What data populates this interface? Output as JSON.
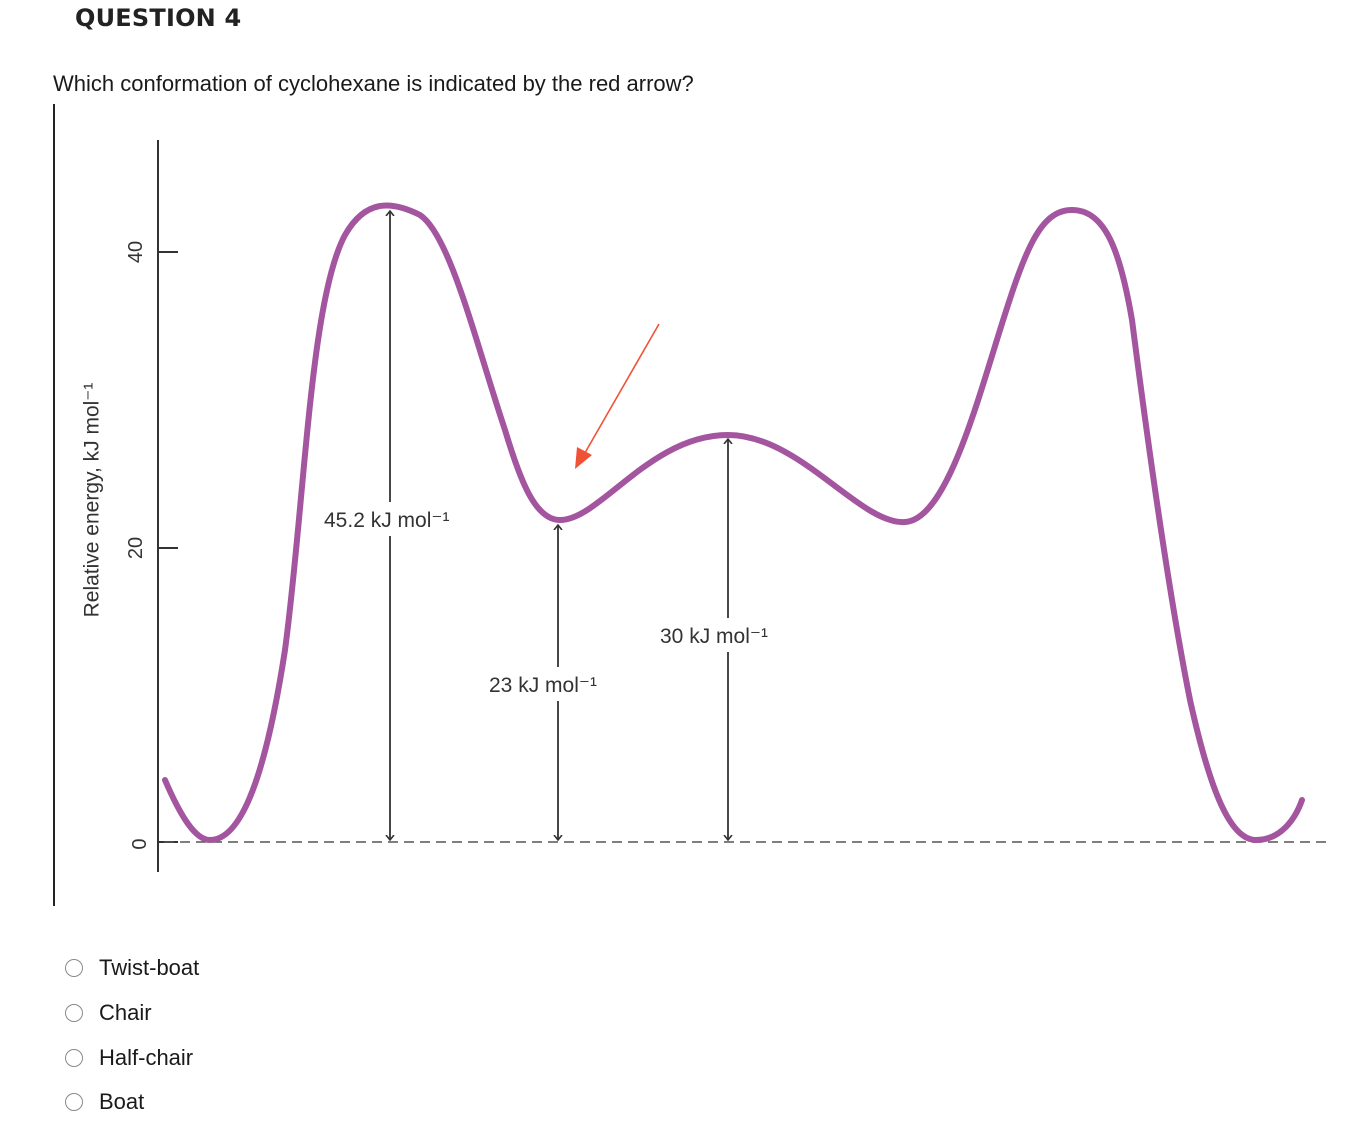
{
  "question": {
    "number": "QUESTION 4",
    "text": "Which conformation of cyclohexane is indicated by the red arrow?"
  },
  "figure": {
    "ylabel": "Relative energy, kJ mol⁻¹",
    "y_ticks": [
      "40",
      "20",
      "0"
    ],
    "annotations": {
      "half_chair_barrier": "45.2 kJ mol⁻¹",
      "twist_boat_energy": "23 kJ mol⁻¹",
      "boat_energy": "30 kJ mol⁻¹"
    },
    "colors": {
      "curve": "#a4559f",
      "arrow": "#f05236",
      "axis": "#333333"
    }
  },
  "options": [
    {
      "label": "Twist-boat",
      "selected": false
    },
    {
      "label": "Chair",
      "selected": false
    },
    {
      "label": "Half-chair",
      "selected": false
    },
    {
      "label": "Boat",
      "selected": false
    }
  ]
}
